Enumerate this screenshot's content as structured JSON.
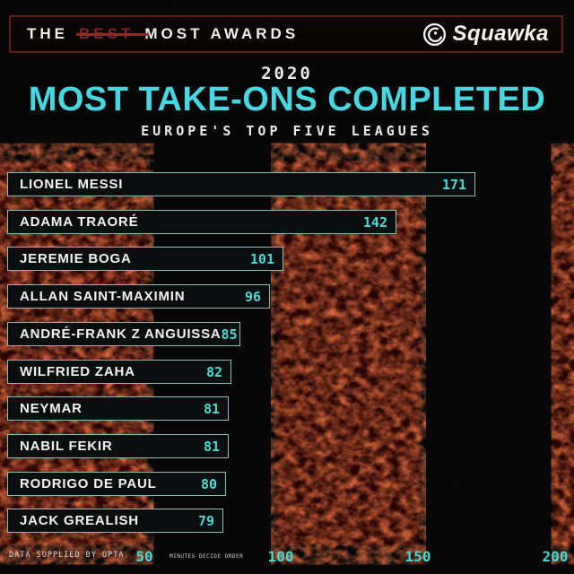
{
  "header": {
    "word1": "THE",
    "struck_word": "BEST",
    "rest": "MOST AWARDS",
    "brand": "Squawka"
  },
  "title_block": {
    "year": "2020",
    "title": "MOST TAKE-ONS COMPLETED",
    "subtitle": "EUROPE'S TOP FIVE LEAGUES"
  },
  "chart_data": {
    "type": "bar",
    "orientation": "horizontal",
    "title": "MOST TAKE-ONS COMPLETED",
    "subtitle": "EUROPE'S TOP FIVE LEAGUES",
    "year": "2020",
    "categories": [
      "LIONEL MESSI",
      "ADAMA TRAORÉ",
      "JEREMIE BOGA",
      "ALLAN SAINT-MAXIMIN",
      "ANDRÉ-FRANK Z ANGUISSA",
      "WILFRIED ZAHA",
      "NEYMAR",
      "NABIL FEKIR",
      "RODRIGO DE PAUL",
      "JACK GREALISH"
    ],
    "values": [
      171,
      142,
      101,
      96,
      85,
      82,
      81,
      81,
      80,
      79
    ],
    "xlim": [
      0,
      207
    ],
    "x_ticks": [
      50,
      100,
      150,
      200
    ],
    "grid": false,
    "legend": false,
    "value_labels": "inside-bar-right",
    "colors": {
      "bar_fill": "#0b0e0e",
      "bar_border": "#a9d9d3",
      "value_text": "#4adcd6",
      "title_cyan": "#46d7e0",
      "background": "#070707",
      "texture_red": "#c2270c",
      "header_border": "#641b15",
      "strike_red": "#96291f"
    }
  },
  "footer": {
    "source": "DATA SUPPLIED BY OPTA",
    "note": "MINUTES DECIDE ORDER"
  }
}
